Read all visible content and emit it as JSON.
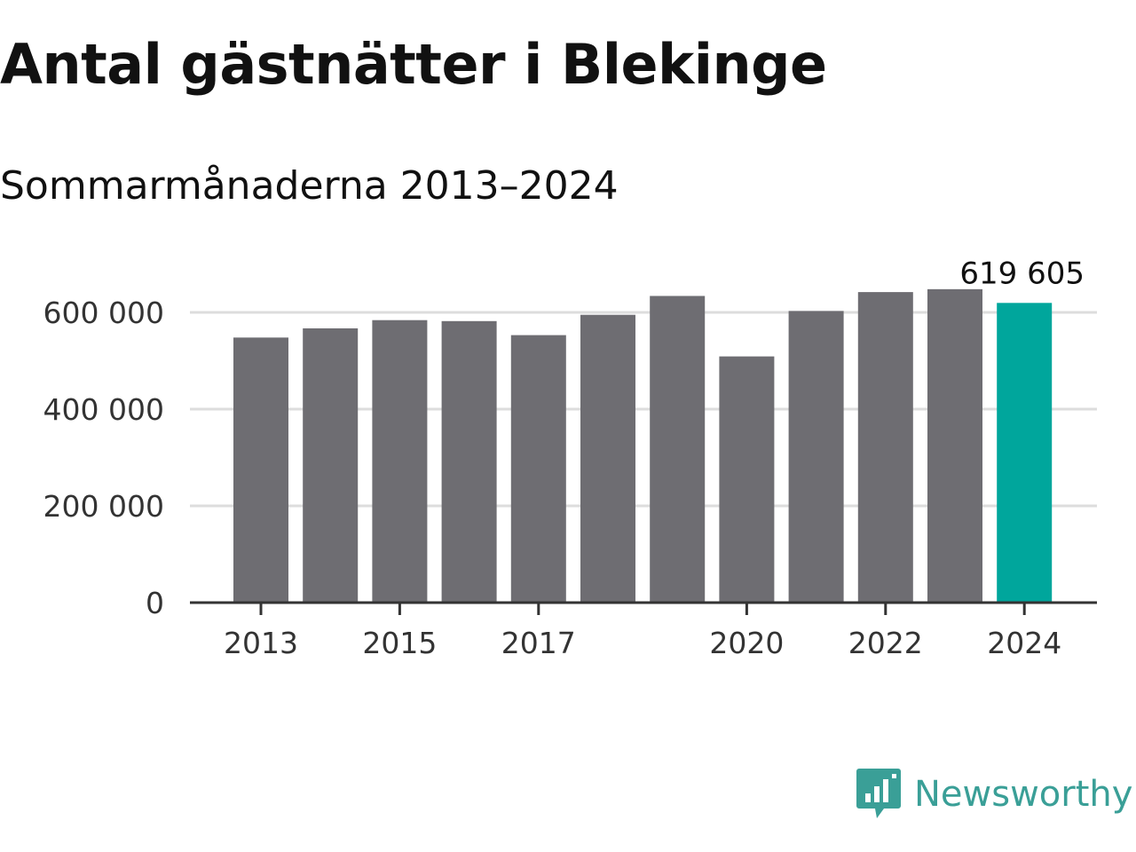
{
  "header": {
    "title": "Antal gästnätter i Blekinge",
    "subtitle": "Sommarmånaderna 2013–2024"
  },
  "chart_data": {
    "type": "bar",
    "categories": [
      "2013",
      "2014",
      "2015",
      "2016",
      "2017",
      "2018",
      "2019",
      "2020",
      "2021",
      "2022",
      "2023",
      "2024"
    ],
    "values": [
      548000,
      567000,
      584000,
      582000,
      553000,
      595000,
      634000,
      509000,
      603000,
      642000,
      648000,
      619605
    ],
    "x_tick_labels": [
      "2013",
      "2015",
      "2017",
      "2020",
      "2022",
      "2024"
    ],
    "y_ticks": [
      0,
      200000,
      400000,
      600000
    ],
    "y_tick_labels": [
      "0",
      "200 000",
      "400 000",
      "600 000"
    ],
    "ylim": [
      0,
      650000
    ],
    "grid": "horizontal",
    "highlight_index": 11,
    "highlight_label": "619 605",
    "colors": {
      "bar": "#6e6d72",
      "highlight": "#00a69c",
      "grid": "#dddddd",
      "axis": "#333333"
    }
  },
  "branding": {
    "name": "Newsworthy",
    "logo_icon": "newsworthy-logo-icon",
    "color": "#3a9f97"
  }
}
